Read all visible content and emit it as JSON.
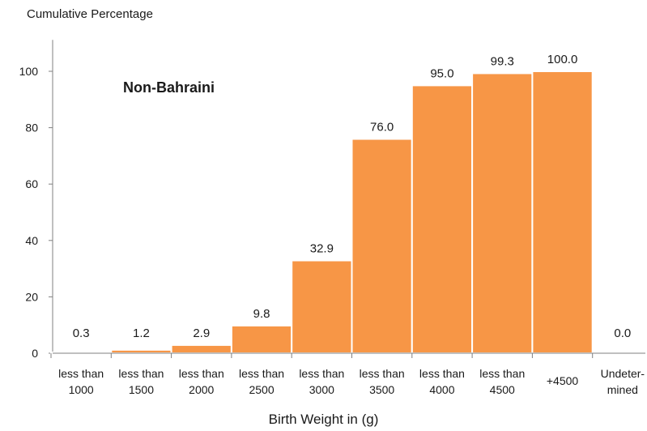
{
  "chart_data": {
    "type": "bar",
    "ylabel": "Cumulative Percentage",
    "xlabel": "Birth Weight in (g)",
    "series_title": "Non-Bahraini",
    "categories": [
      [
        "less than",
        "1000"
      ],
      [
        "less than",
        "1500"
      ],
      [
        "less than",
        "2000"
      ],
      [
        "less than",
        "2500"
      ],
      [
        "less than",
        "3000"
      ],
      [
        "less than",
        "3500"
      ],
      [
        "less than",
        "4000"
      ],
      [
        "less than",
        "4500"
      ],
      [
        "+4500"
      ],
      [
        "Undeter-",
        "mined"
      ]
    ],
    "values": [
      0.3,
      1.2,
      2.9,
      9.8,
      32.9,
      76.0,
      95.0,
      99.3,
      100.0,
      0.0
    ],
    "value_labels": [
      "0.3",
      "1.2",
      "2.9",
      "9.8",
      "32.9",
      "76.0",
      "95.0",
      "99.3",
      "100.0",
      "0.0"
    ],
    "ylim": [
      0,
      110
    ],
    "yticks": [
      0,
      20,
      40,
      60,
      80,
      100
    ],
    "grid": false,
    "colors": {
      "bar": "#F79646",
      "bar_edge": "#ffffff",
      "axis": "#808080"
    }
  }
}
